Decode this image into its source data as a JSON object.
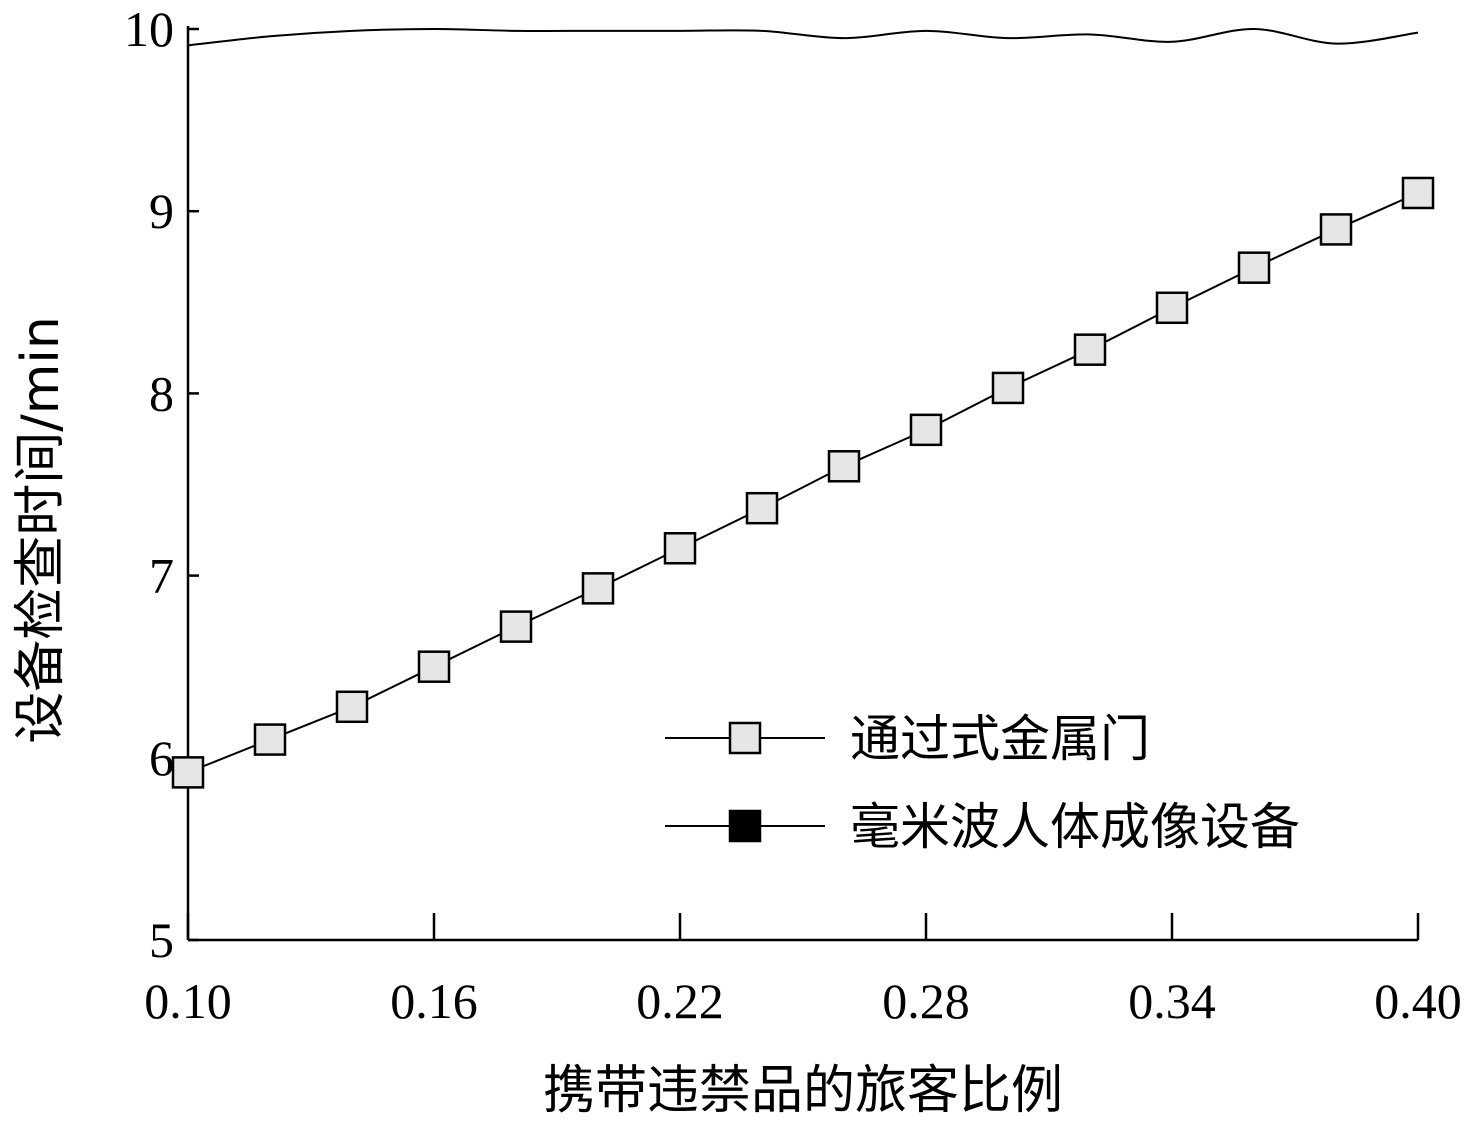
{
  "chart_data": {
    "type": "line",
    "xlabel": "携带违禁品的旅客比例",
    "ylabel": "设备检查时间/min",
    "xlim": [
      0.1,
      0.4
    ],
    "ylim": [
      5,
      10
    ],
    "xticks": [
      0.1,
      0.16,
      0.22,
      0.28,
      0.34,
      0.4
    ],
    "xtick_labels": [
      "0.10",
      "0.16",
      "0.22",
      "0.28",
      "0.34",
      "0.40"
    ],
    "yticks": [
      5,
      6,
      7,
      8,
      9,
      10
    ],
    "ytick_labels": [
      "5",
      "6",
      "7",
      "8",
      "9",
      "10"
    ],
    "grid": false,
    "legend_position": "bottom-right",
    "series": [
      {
        "name": "通过式金属门",
        "marker": "square-open",
        "marker_fill": "#e6e6e6",
        "x": [
          0.1,
          0.12,
          0.14,
          0.16,
          0.18,
          0.2,
          0.22,
          0.24,
          0.26,
          0.28,
          0.3,
          0.32,
          0.34,
          0.36,
          0.38,
          0.4
        ],
        "y": [
          5.92,
          6.1,
          6.28,
          6.5,
          6.72,
          6.93,
          7.15,
          7.37,
          7.6,
          7.8,
          8.03,
          8.24,
          8.47,
          8.69,
          8.9,
          9.1
        ]
      },
      {
        "name": "毫米波人体成像设备",
        "marker": "square-filled",
        "marker_fill": "#000000",
        "x": [
          0.1,
          0.12,
          0.14,
          0.16,
          0.18,
          0.2,
          0.22,
          0.24,
          0.26,
          0.28,
          0.3,
          0.32,
          0.34,
          0.36,
          0.38,
          0.4
        ],
        "y": [
          9.91,
          9.96,
          9.99,
          10.0,
          9.99,
          9.99,
          9.99,
          9.99,
          9.95,
          9.99,
          9.95,
          9.97,
          9.93,
          10.0,
          9.92,
          9.98
        ]
      }
    ]
  }
}
